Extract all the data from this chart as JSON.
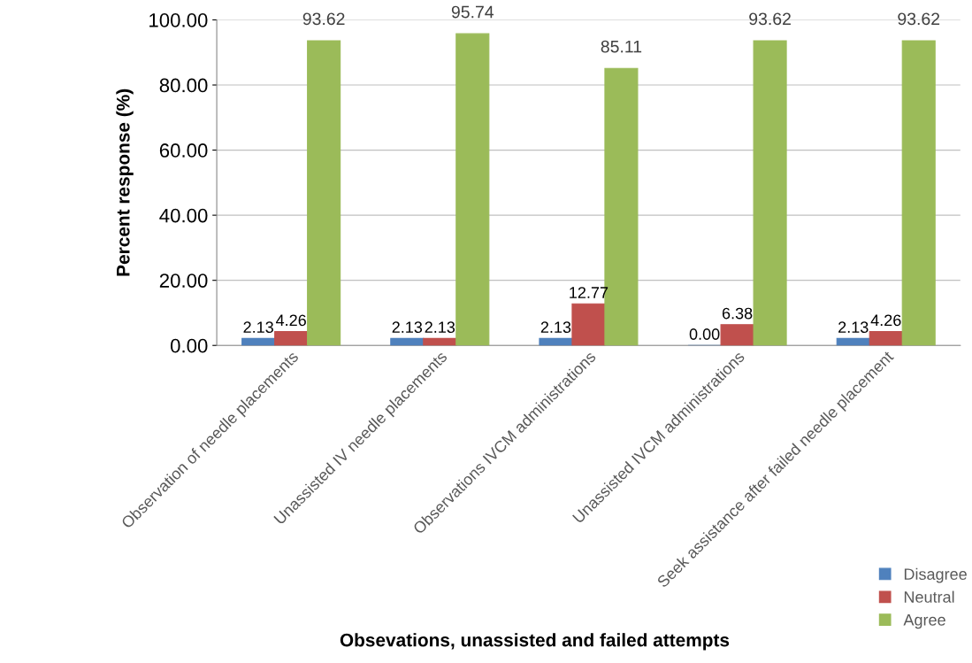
{
  "chart_data": {
    "type": "bar",
    "xlabel": "Obsevations, unassisted and failed attempts",
    "ylabel": "Percent response (%)",
    "categories": [
      "Observation of needle placements",
      "Unassisted IV needle placements",
      "Observations IVCM administrations",
      "Unassisted IVCM administrations",
      "Seek assistance after failed needle placement"
    ],
    "series": [
      {
        "name": "Disagree",
        "color": "#4f81bd",
        "values": [
          2.13,
          2.13,
          2.13,
          0.0,
          2.13
        ],
        "value_labels": [
          "2.13",
          "2.13",
          "2.13",
          "0.00",
          "2.13"
        ]
      },
      {
        "name": "Neutral",
        "color": "#c0504d",
        "values": [
          4.26,
          2.13,
          12.77,
          6.38,
          4.26
        ],
        "value_labels": [
          "4.26",
          "2.13",
          "12.77",
          "6.38",
          "4.26"
        ]
      },
      {
        "name": "Agree",
        "color": "#9bbb59",
        "values": [
          93.62,
          95.74,
          85.11,
          93.62,
          93.62
        ],
        "value_labels": [
          "93.62",
          "95.74",
          "85.11",
          "93.62",
          "93.62"
        ]
      }
    ],
    "ylim": [
      0,
      100
    ],
    "yticks": [
      {
        "value": 0,
        "label": "0.00"
      },
      {
        "value": 20,
        "label": "20.00"
      },
      {
        "value": 40,
        "label": "40.00"
      },
      {
        "value": 60,
        "label": "60.00"
      },
      {
        "value": 80,
        "label": "80.00"
      },
      {
        "value": 100,
        "label": "100.00"
      }
    ],
    "grid": "y",
    "legend": "bottom right"
  }
}
